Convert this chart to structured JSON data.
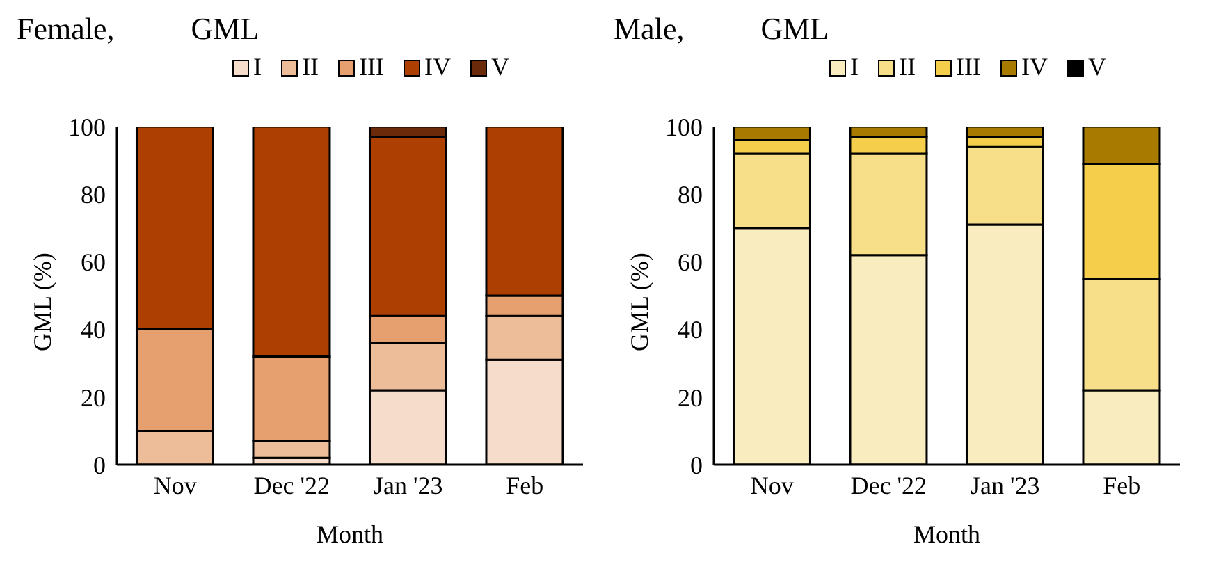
{
  "chart_data": [
    {
      "type": "bar",
      "title": "Female,          GML",
      "xlabel": "Month",
      "ylabel": "GML (%)",
      "categories": [
        "Nov",
        "Dec '22",
        "Jan '23",
        "Feb"
      ],
      "stacked": true,
      "legend": "top",
      "grid": false,
      "ylim": [
        0,
        100
      ],
      "yticks": [
        0,
        20,
        40,
        60,
        80,
        100
      ],
      "series": [
        {
          "name": "I",
          "color": "#f5dccb",
          "values": [
            0,
            2,
            22,
            31
          ]
        },
        {
          "name": "II",
          "color": "#ecbd98",
          "values": [
            10,
            5,
            14,
            13
          ]
        },
        {
          "name": "III",
          "color": "#e6a070",
          "values": [
            30,
            25,
            8,
            6
          ]
        },
        {
          "name": "IV",
          "color": "#ad3f00",
          "values": [
            60,
            68,
            53,
            50
          ]
        },
        {
          "name": "V",
          "color": "#6b2a0a",
          "values": [
            0,
            0,
            3,
            0
          ]
        }
      ]
    },
    {
      "type": "bar",
      "title": "Male,          GML",
      "xlabel": "Month",
      "ylabel": "GML (%)",
      "categories": [
        "Nov",
        "Dec '22",
        "Jan '23",
        "Feb"
      ],
      "stacked": true,
      "legend": "top",
      "grid": false,
      "ylim": [
        0,
        100
      ],
      "yticks": [
        0,
        20,
        40,
        60,
        80,
        100
      ],
      "series": [
        {
          "name": "I",
          "color": "#f9ecbf",
          "values": [
            70,
            62,
            71,
            22
          ]
        },
        {
          "name": "II",
          "color": "#f7df8a",
          "values": [
            22,
            30,
            23,
            33
          ]
        },
        {
          "name": "III",
          "color": "#f5cf4b",
          "values": [
            4,
            5,
            3,
            34
          ]
        },
        {
          "name": "IV",
          "color": "#a87b00",
          "values": [
            4,
            3,
            3,
            11
          ]
        },
        {
          "name": "V",
          "color": "#000000",
          "values": [
            0,
            0,
            0,
            0
          ]
        }
      ]
    }
  ]
}
